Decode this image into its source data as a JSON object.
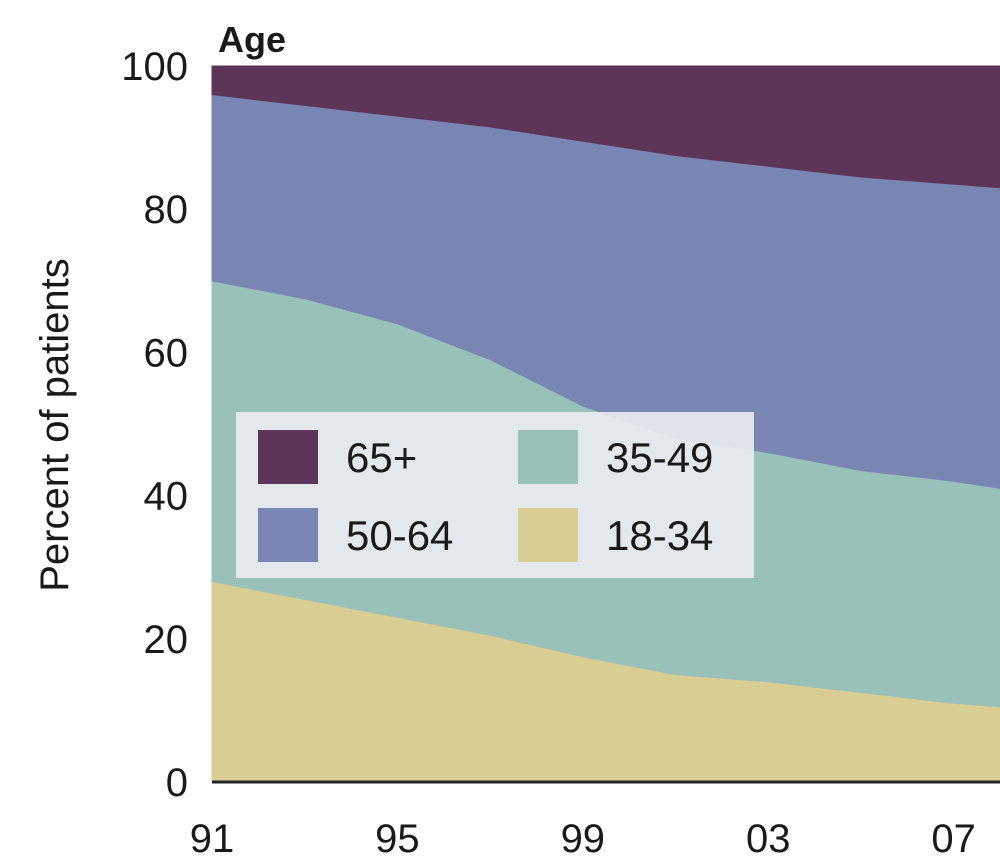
{
  "chart_data": {
    "type": "area",
    "stacked": true,
    "title": "Age",
    "xlabel": "",
    "ylabel": "Percent of patients",
    "xticks": [
      "91",
      "95",
      "99",
      "03",
      "07"
    ],
    "yticks": [
      0,
      20,
      40,
      60,
      80,
      100
    ],
    "ylim": [
      0,
      100
    ],
    "x": [
      1991,
      1993,
      1995,
      1997,
      1999,
      2001,
      2003,
      2005,
      2007,
      2008
    ],
    "series": [
      {
        "name": "18-34",
        "color": "#d8cd93",
        "values": [
          28,
          25.5,
          23,
          20.5,
          17.5,
          15,
          14,
          12.5,
          11,
          10.5
        ]
      },
      {
        "name": "35-49",
        "color": "#99c1b9",
        "values": [
          42,
          42,
          41,
          38.5,
          35,
          33,
          32,
          31,
          31,
          30.5
        ]
      },
      {
        "name": "50-64",
        "color": "#7986b4",
        "values": [
          26,
          27,
          29,
          32.5,
          37,
          39.5,
          40,
          41,
          41.5,
          42
        ]
      },
      {
        "name": "65+",
        "color": "#5d3558",
        "values": [
          4,
          5.5,
          7,
          8.5,
          10.5,
          12.5,
          14,
          15.5,
          16.5,
          17
        ]
      }
    ],
    "legend": {
      "placement": "left-center",
      "order": [
        "65+",
        "35-49",
        "50-64",
        "18-34"
      ]
    },
    "grid": false
  }
}
